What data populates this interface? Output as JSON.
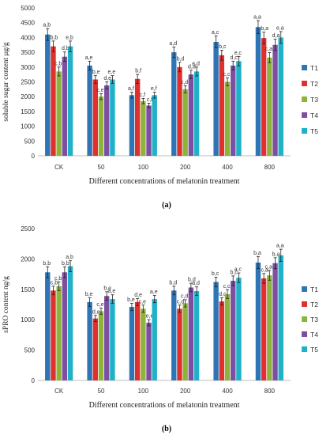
{
  "series_colors": [
    "#2E75B6",
    "#E0302E",
    "#8DB33A",
    "#7D4FA0",
    "#1FB1C8"
  ],
  "chart_data": [
    {
      "type": "bar",
      "panel_label": "(a)",
      "xlabel": "Different concentrations of melatonin treatment",
      "ylabel": "soluble sugar content μg/g",
      "ylim": [
        0,
        5000
      ],
      "yticks": [
        0,
        500,
        1000,
        1500,
        2000,
        2500,
        3000,
        3500,
        4000,
        4500,
        5000
      ],
      "grid": false,
      "legend": "right",
      "categories": [
        "CK",
        "50",
        "100",
        "200",
        "400",
        "800"
      ],
      "series": [
        {
          "name": "T1",
          "values": [
            4100,
            3050,
            2050,
            3500,
            3850,
            4350
          ],
          "errors": [
            200,
            150,
            100,
            180,
            200,
            220
          ],
          "labels": [
            "a,b",
            "a,e",
            "a,f",
            "a,d",
            "a,c",
            "a,a"
          ]
        },
        {
          "name": "T2",
          "values": [
            3700,
            2580,
            2600,
            3000,
            3400,
            3980
          ],
          "errors": [
            180,
            130,
            150,
            160,
            170,
            200
          ],
          "labels": [
            "b,b",
            "b,e",
            "b,f",
            "b,d",
            "b,c",
            "b,a"
          ]
        },
        {
          "name": "T3",
          "values": [
            2850,
            2000,
            1850,
            2250,
            2500,
            3320
          ],
          "errors": [
            150,
            100,
            90,
            120,
            130,
            170
          ],
          "labels": [
            "c,b",
            "c,e",
            "c,f",
            "c,d",
            "c,c",
            "c,a"
          ]
        },
        {
          "name": "T4",
          "values": [
            3350,
            2380,
            1700,
            2750,
            3050,
            3750
          ],
          "errors": [
            160,
            120,
            80,
            140,
            150,
            190
          ],
          "labels": [
            "d,b",
            "d,e",
            "c,f",
            "d,d",
            "d,c",
            "d,a"
          ]
        },
        {
          "name": "T5",
          "values": [
            3700,
            2580,
            2050,
            2850,
            3200,
            4000
          ],
          "errors": [
            180,
            130,
            100,
            150,
            160,
            200
          ],
          "labels": [
            "e,b",
            "e,e",
            "e,f",
            "e,d",
            "e,c",
            "e,a"
          ]
        }
      ]
    },
    {
      "type": "bar",
      "panel_label": "(b)",
      "xlabel": "Different concentrations of melatonin treatment",
      "ylabel": "sPRO content ng/g",
      "ylim": [
        0,
        2500
      ],
      "yticks": [
        0,
        500,
        1000,
        1500,
        2000,
        2500
      ],
      "grid": false,
      "legend": "right",
      "categories": [
        "CK",
        "50",
        "100",
        "200",
        "400",
        "800"
      ],
      "series": [
        {
          "name": "T1",
          "values": [
            1780,
            1290,
            1210,
            1480,
            1620,
            1940
          ],
          "errors": [
            90,
            70,
            60,
            70,
            80,
            100
          ],
          "labels": [
            "b,b",
            "b,e",
            "b,e",
            "b,d",
            "b,c",
            "b,a"
          ]
        },
        {
          "name": "T2",
          "values": [
            1480,
            1020,
            1290,
            1180,
            1300,
            1680
          ],
          "errors": [
            70,
            50,
            60,
            60,
            60,
            80
          ],
          "labels": [
            "c,b",
            "d,e",
            "d,e",
            "c,d",
            "d,c",
            "c,a"
          ]
        },
        {
          "name": "T3",
          "values": [
            1550,
            1140,
            1180,
            1270,
            1420,
            1730
          ],
          "errors": [
            70,
            50,
            60,
            60,
            70,
            80
          ],
          "labels": [
            "c,b",
            "c,e",
            "c,e",
            "c,d",
            "c,c",
            "c,a"
          ]
        },
        {
          "name": "T4",
          "values": [
            1780,
            1390,
            950,
            1530,
            1640,
            1930
          ],
          "errors": [
            90,
            70,
            50,
            70,
            80,
            90
          ],
          "labels": [
            "b,b",
            "b,e",
            "e,e",
            "b,d",
            "b,c",
            "b,a"
          ]
        },
        {
          "name": "T5",
          "values": [
            1880,
            1340,
            1340,
            1470,
            1690,
            2060
          ],
          "errors": [
            90,
            70,
            60,
            70,
            80,
            100
          ],
          "labels": [
            "a,b",
            "a,e",
            "a,e",
            "a,d",
            "a,c",
            "a,a"
          ]
        }
      ]
    }
  ]
}
